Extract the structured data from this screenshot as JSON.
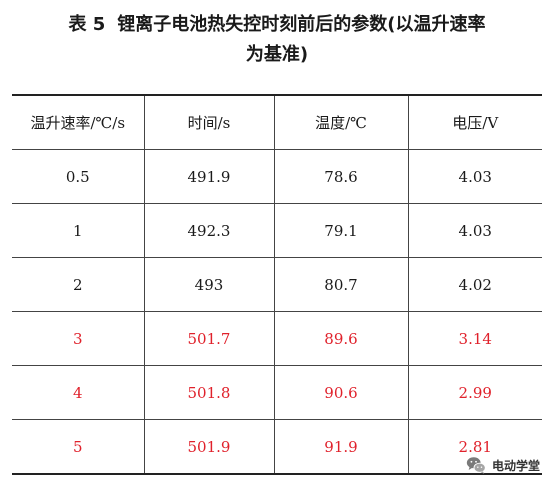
{
  "caption": {
    "label": "表 5",
    "title_line1": "锂离子电池热失控时刻前后的参数(以温升速率",
    "title_line2": "为基准)"
  },
  "table": {
    "headers": [
      "温升速率/℃/s",
      "时间/s",
      "温度/℃",
      "电压/V"
    ],
    "rows": [
      {
        "rate": "0.5",
        "time": "491.9",
        "temp": "78.6",
        "voltage": "4.03",
        "highlight": false
      },
      {
        "rate": "1",
        "time": "492.3",
        "temp": "79.1",
        "voltage": "4.03",
        "highlight": false
      },
      {
        "rate": "2",
        "time": "493",
        "temp": "80.7",
        "voltage": "4.02",
        "highlight": false
      },
      {
        "rate": "3",
        "time": "501.7",
        "temp": "89.6",
        "voltage": "3.14",
        "highlight": true
      },
      {
        "rate": "4",
        "time": "501.8",
        "temp": "90.6",
        "voltage": "2.99",
        "highlight": true
      },
      {
        "rate": "5",
        "time": "501.9",
        "temp": "91.9",
        "voltage": "2.81",
        "highlight": true
      }
    ]
  },
  "colors": {
    "highlight_text": "#e0212b",
    "text": "#1a1a1a"
  },
  "watermark": {
    "text": "电动学堂",
    "icon": "wechat-icon"
  }
}
